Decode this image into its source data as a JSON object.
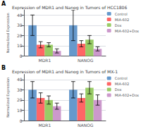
{
  "chart_data": [
    {
      "type": "bar",
      "title": "Expression of MDR1 and Nanog in Tumors of HCC1806",
      "annotation": "A",
      "categories": [
        "MDR1",
        "NANOG"
      ],
      "series": [
        {
          "name": "Control",
          "color": "#6699CC",
          "values": [
            30,
            30
          ],
          "errors": [
            10,
            15
          ]
        },
        {
          "name": "MIA-602",
          "color": "#FF6666",
          "values": [
            11,
            12
          ],
          "errors": [
            3,
            3
          ]
        },
        {
          "name": "Dox",
          "color": "#99CC66",
          "values": [
            11,
            16
          ],
          "errors": [
            2,
            4
          ]
        },
        {
          "name": "MIA-602+Dox",
          "color": "#CC99CC",
          "values": [
            5,
            7
          ],
          "errors": [
            2,
            2
          ]
        }
      ],
      "ylabel": "Normalized Expression",
      "ylim": [
        0,
        45
      ],
      "yticks": [
        0,
        10,
        20,
        30,
        40
      ],
      "grid": true,
      "legend": "upper right"
    },
    {
      "type": "bar",
      "title": "Expression of MDR1 and Nanog in Tumors of MX-1",
      "annotation": "B",
      "categories": [
        "MDR1",
        "NANOG"
      ],
      "series": [
        {
          "name": "Control",
          "color": "#6699CC",
          "values": [
            30,
            30
          ],
          "errors": [
            8,
            8
          ]
        },
        {
          "name": "MIA-602",
          "color": "#FF6666",
          "values": [
            22,
            22
          ],
          "errors": [
            5,
            4
          ]
        },
        {
          "name": "Dox",
          "color": "#99CC66",
          "values": [
            20,
            32
          ],
          "errors": [
            4,
            6
          ]
        },
        {
          "name": "MIA-602+Dox",
          "color": "#CC99CC",
          "values": [
            14,
            20
          ],
          "errors": [
            3,
            5
          ]
        }
      ],
      "ylabel": "Normalized Expression",
      "ylim": [
        0,
        45
      ],
      "yticks": [
        0,
        10,
        20,
        30,
        40
      ],
      "grid": true,
      "legend": "upper right"
    }
  ]
}
